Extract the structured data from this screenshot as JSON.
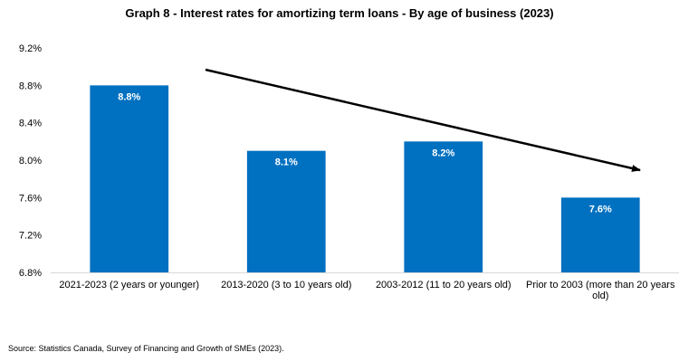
{
  "chart_data": {
    "type": "bar",
    "title": "Graph 8 - Interest rates for amortizing term loans - By age of business (2023)",
    "categories": [
      [
        "2021-2023 (2 years or younger)"
      ],
      [
        "2013-2020 (3 to 10 years old)"
      ],
      [
        "2003-2012 (11 to 20 years old)"
      ],
      [
        "Prior to 2003 (more than 20 years",
        "old)"
      ]
    ],
    "values": [
      8.8,
      8.1,
      8.2,
      7.6
    ],
    "data_labels": [
      "8.8%",
      "8.1%",
      "8.2%",
      "7.6%"
    ],
    "ylim": [
      6.8,
      9.2
    ],
    "yticks": [
      6.8,
      7.2,
      7.6,
      8.0,
      8.4,
      8.8,
      9.2
    ],
    "ytick_labels": [
      "6.8%",
      "7.2%",
      "7.6%",
      "8.0%",
      "8.4%",
      "8.8%",
      "9.2%"
    ],
    "xlabel": "",
    "ylabel": "",
    "grid": false,
    "legend": "none",
    "annotation": "downward trend arrow",
    "bar_color": "#0070C0",
    "source": "Source: Statistics Canada, Survey of Financing and Growth of SMEs (2023)."
  }
}
